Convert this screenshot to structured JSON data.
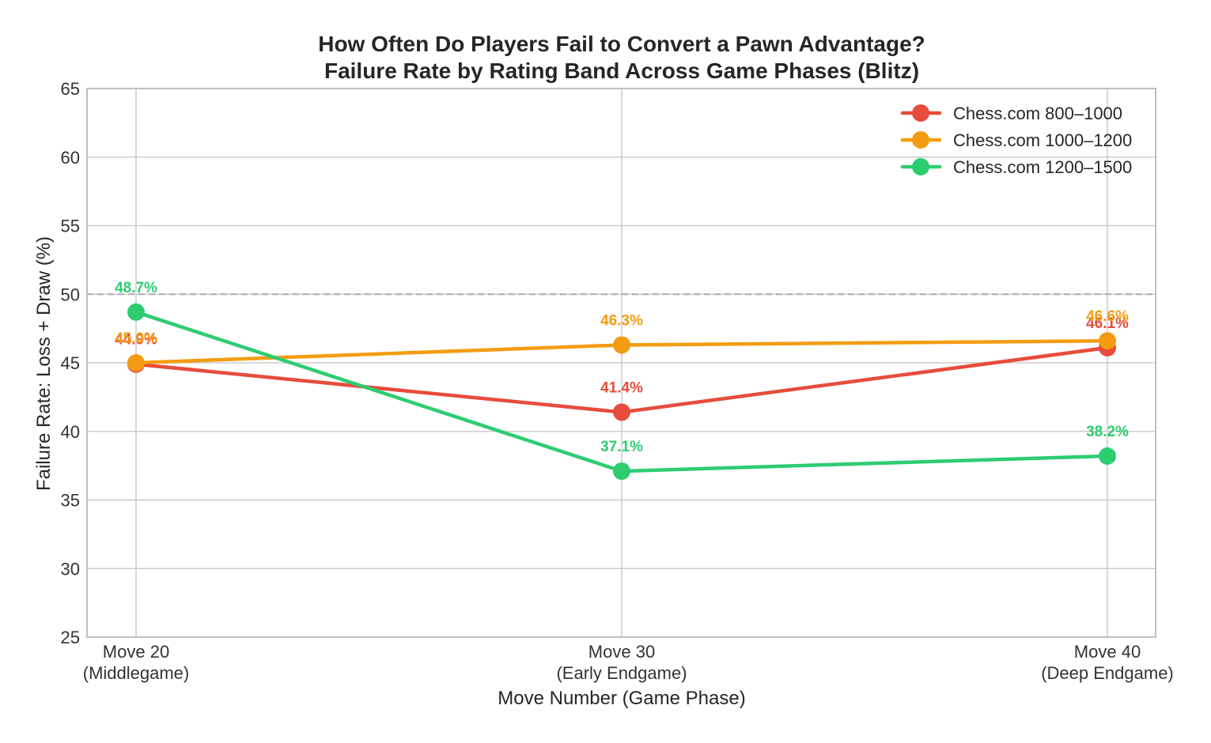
{
  "colors": {
    "background": "#ffffff",
    "grid": "#cccccc",
    "frame": "#bfbfbf",
    "reference_line": "#aaaaaa"
  },
  "chart_data": {
    "type": "line",
    "title": "How Often Do Players Fail to Convert a Pawn Advantage?",
    "subtitle": "Failure Rate by Rating Band Across Game Phases (Blitz)",
    "xlabel": "Move Number (Game Phase)",
    "ylabel": "Failure Rate: Loss + Draw (%)",
    "categories": [
      [
        "Move 20",
        "(Middlegame)"
      ],
      [
        "Move 30",
        "(Early Endgame)"
      ],
      [
        "Move 40",
        "(Deep Endgame)"
      ]
    ],
    "ylim": [
      25,
      65
    ],
    "yticks": [
      "25",
      "30",
      "35",
      "40",
      "45",
      "50",
      "55",
      "60",
      "65"
    ],
    "grid": true,
    "legend_position": "top-right",
    "reference_line": {
      "y": 50,
      "style": "dashed"
    },
    "series": [
      {
        "name": "Chess.com 800–1000",
        "color": "#e74c3c",
        "values": [
          44.9,
          41.4,
          46.1
        ],
        "labels": [
          "44.9%",
          "41.4%",
          "46.1%"
        ]
      },
      {
        "name": "Chess.com 1000–1200",
        "color": "#f39c12",
        "values": [
          45.0,
          46.3,
          46.6
        ],
        "labels": [
          "45.0%",
          "46.3%",
          "46.6%"
        ]
      },
      {
        "name": "Chess.com 1200–1500",
        "color": "#2ecc71",
        "values": [
          48.7,
          37.1,
          38.2
        ],
        "labels": [
          "48.7%",
          "37.1%",
          "38.2%"
        ]
      }
    ]
  }
}
